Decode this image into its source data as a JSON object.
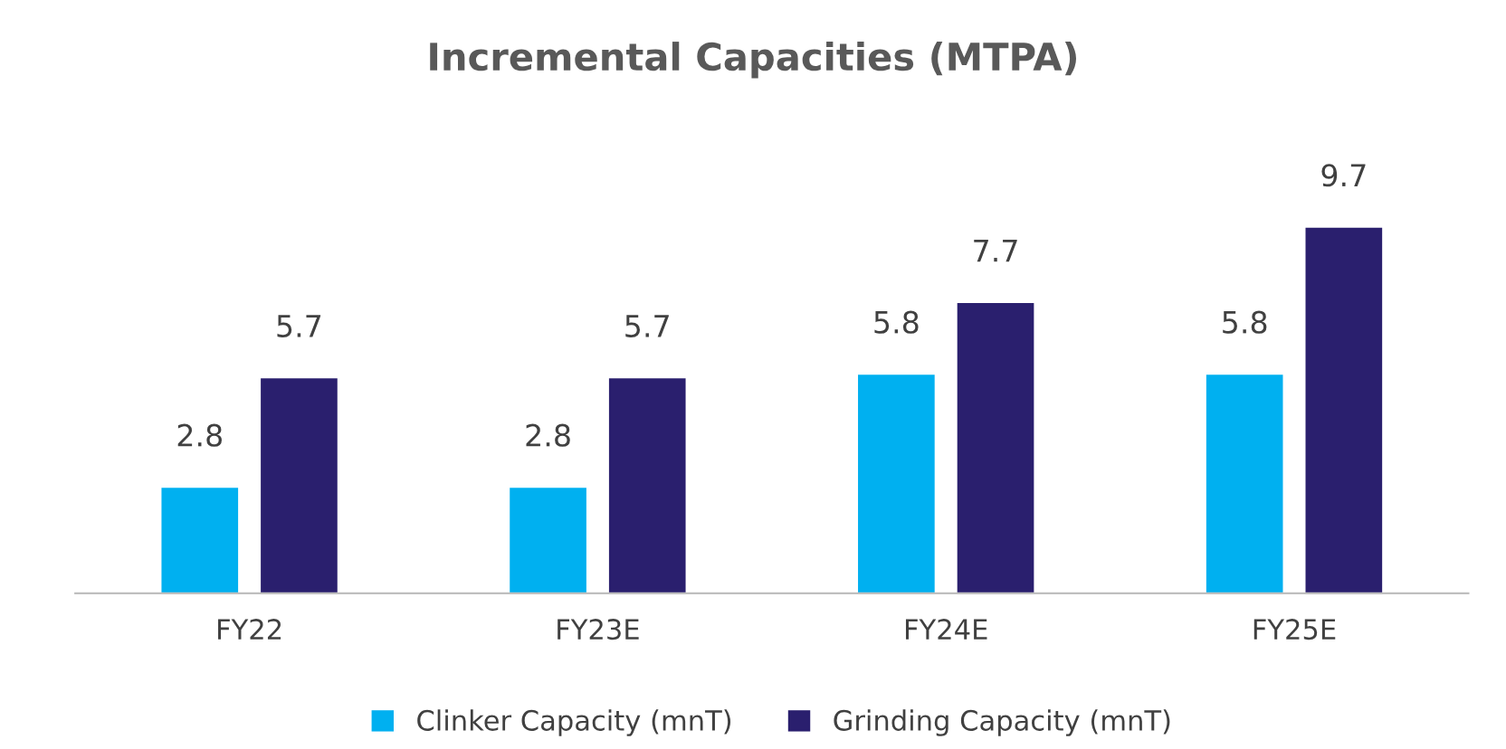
{
  "chart_data": {
    "type": "bar",
    "title": "Incremental Capacities (MTPA)",
    "categories": [
      "FY22",
      "FY23E",
      "FY24E",
      "FY25E"
    ],
    "series": [
      {
        "name": "Clinker Capacity (mnT)",
        "color": "#00b0f0",
        "values": [
          2.8,
          2.8,
          5.8,
          5.8
        ]
      },
      {
        "name": "Grinding Capacity (mnT)",
        "color": "#2a1f6e",
        "values": [
          5.7,
          5.7,
          7.7,
          9.7
        ]
      }
    ],
    "data_labels": true,
    "legend": "bottom",
    "grid": false
  }
}
